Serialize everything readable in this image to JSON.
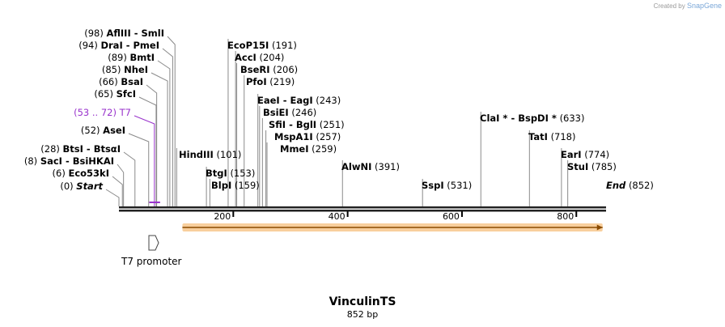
{
  "credit": {
    "prefix": "Created by",
    "brand": "SnapGene"
  },
  "sequence": {
    "name": "VinculinTS",
    "length_label": "852 bp",
    "length": 852
  },
  "colors": {
    "enzyme_line": "#8a8a8a",
    "t7": "#9933cc",
    "orf_fill": "#f7c78c",
    "orf_edge": "#e0962e",
    "backbone": "#222222"
  },
  "ruler": {
    "ticks": [
      200,
      400,
      600,
      800
    ],
    "labels": [
      "200",
      "400",
      "600",
      "800"
    ]
  },
  "sites": [
    {
      "id": "start",
      "name": "Start",
      "pos": 0,
      "pos_label": "(0)",
      "italic": true
    },
    {
      "id": "eco53ki",
      "name": "Eco53kI",
      "pos": 6,
      "pos_label": "(6)"
    },
    {
      "id": "saci",
      "name": "SacI  -  BsiHKAI",
      "pos": 8,
      "pos_label": "(8)"
    },
    {
      "id": "btsi",
      "name": "BtsI  -  BtsαI",
      "pos": 28,
      "pos_label": "(28)"
    },
    {
      "id": "asei",
      "name": "AseI",
      "pos": 52,
      "pos_label": "(52)"
    },
    {
      "id": "t7",
      "name": "T7",
      "pos": 62,
      "pos_label": "(53 .. 72)",
      "primer": true
    },
    {
      "id": "sfci",
      "name": "SfcI",
      "pos": 65,
      "pos_label": "(65)"
    },
    {
      "id": "bsai",
      "name": "BsaI",
      "pos": 66,
      "pos_label": "(66)"
    },
    {
      "id": "nhei",
      "name": "NheI",
      "pos": 85,
      "pos_label": "(85)"
    },
    {
      "id": "bmti",
      "name": "BmtI",
      "pos": 89,
      "pos_label": "(89)"
    },
    {
      "id": "drai",
      "name": "DraI  -  PmeI",
      "pos": 94,
      "pos_label": "(94)"
    },
    {
      "id": "aflii",
      "name": "AflIII  -  SmlI",
      "pos": 98,
      "pos_label": "(98)"
    },
    {
      "id": "hindiii",
      "name": "HindIII",
      "pos": 101,
      "pos_label": "(101)"
    },
    {
      "id": "btgi",
      "name": "BtgI",
      "pos": 153,
      "pos_label": "(153)"
    },
    {
      "id": "blpi",
      "name": "BlpI",
      "pos": 159,
      "pos_label": "(159)"
    },
    {
      "id": "ecop15i",
      "name": "EcoP15I",
      "pos": 191,
      "pos_label": "(191)"
    },
    {
      "id": "acci",
      "name": "AccI",
      "pos": 204,
      "pos_label": "(204)"
    },
    {
      "id": "bseri",
      "name": "BseRI",
      "pos": 206,
      "pos_label": "(206)"
    },
    {
      "id": "pfoi",
      "name": "PfoI",
      "pos": 219,
      "pos_label": "(219)"
    },
    {
      "id": "eaei",
      "name": "EaeI  -  EagI",
      "pos": 243,
      "pos_label": "(243)"
    },
    {
      "id": "bsiei",
      "name": "BsiEI",
      "pos": 246,
      "pos_label": "(246)"
    },
    {
      "id": "sfii",
      "name": "SfiI  -  BglI",
      "pos": 251,
      "pos_label": "(251)"
    },
    {
      "id": "mspa1i",
      "name": "MspA1I",
      "pos": 257,
      "pos_label": "(257)"
    },
    {
      "id": "mmei",
      "name": "MmeI",
      "pos": 259,
      "pos_label": "(259)"
    },
    {
      "id": "alwni",
      "name": "AlwNI",
      "pos": 391,
      "pos_label": "(391)"
    },
    {
      "id": "sspi",
      "name": "SspI",
      "pos": 531,
      "pos_label": "(531)"
    },
    {
      "id": "clai",
      "name": "ClaI *  -  BspDI *",
      "pos": 633,
      "pos_label": "(633)"
    },
    {
      "id": "tati",
      "name": "TatI",
      "pos": 718,
      "pos_label": "(718)"
    },
    {
      "id": "eari",
      "name": "EarI",
      "pos": 774,
      "pos_label": "(774)"
    },
    {
      "id": "stui",
      "name": "StuI",
      "pos": 785,
      "pos_label": "(785)"
    },
    {
      "id": "end",
      "name": "End",
      "pos": 852,
      "pos_label": "(852)",
      "italic": true
    }
  ],
  "features": [
    {
      "id": "t7-promoter",
      "name": "T7 promoter",
      "start": 53,
      "end": 72
    },
    {
      "id": "orf",
      "name": "",
      "start": 111,
      "end": 846
    }
  ]
}
